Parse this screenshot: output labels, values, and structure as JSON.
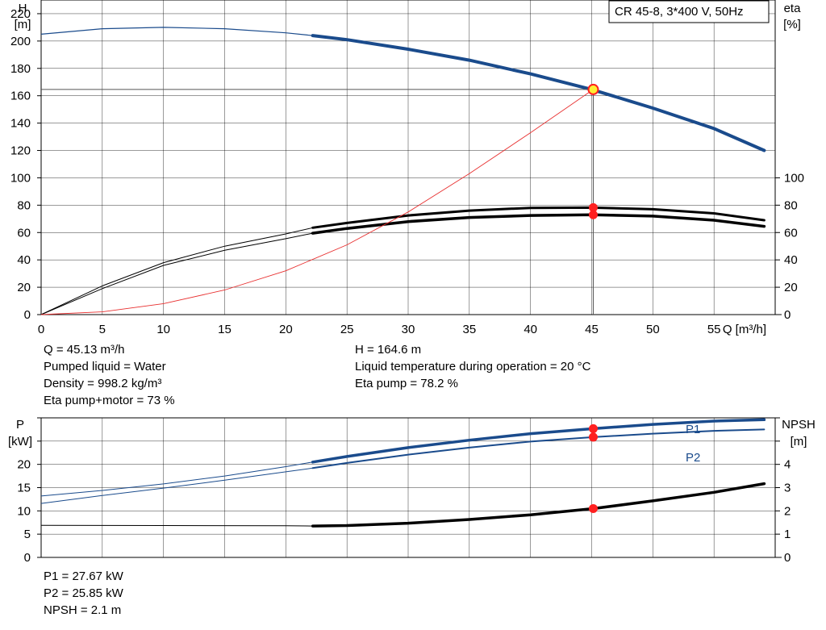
{
  "legend_box": "CR 45-8, 3*400 V, 50Hz",
  "info_top_left": [
    "Q = 45.13 m³/h",
    "Pumped liquid = Water",
    "Density = 998.2 kg/m³",
    "Eta pump+motor = 73 %"
  ],
  "info_top_right": [
    "H = 164.6 m",
    "Liquid temperature during operation = 20 °C",
    "Eta pump = 78.2 %"
  ],
  "info_bottom": [
    "P1 = 27.67 kW",
    "P2 = 25.85 kW",
    "NPSH = 2.1 m"
  ],
  "colors": {
    "head": "#1a4b8c",
    "power": "#1a4b8c",
    "eta": "#000000",
    "system": "#e83030",
    "duty_point": "#ff2020",
    "duty_fill": "#ffee33",
    "grid": "#000000"
  },
  "chart_data": [
    {
      "type": "line",
      "xlabel": "Q [m³/h]",
      "ylabel": "H\n[m]",
      "y2label": "eta\n[%]",
      "xlim": [
        0,
        60
      ],
      "ylim": [
        0,
        230
      ],
      "y2lim": [
        0,
        230
      ],
      "x_ticks": [
        0,
        5,
        10,
        15,
        20,
        25,
        30,
        35,
        40,
        45,
        50,
        55
      ],
      "y_ticks": [
        0,
        20,
        40,
        60,
        80,
        100,
        120,
        140,
        160,
        180,
        200,
        220
      ],
      "y2_ticks": [
        0,
        20,
        40,
        60,
        80,
        100
      ],
      "grid": true,
      "series": [
        {
          "role": "head",
          "axis": "left",
          "x": [
            0,
            5,
            10,
            15,
            20,
            22.2,
            25,
            30,
            35,
            40,
            45,
            50,
            55,
            59.1
          ],
          "y": [
            205,
            209,
            210,
            209,
            206,
            204,
            201,
            194,
            186,
            176,
            164.6,
            151,
            136,
            120
          ]
        },
        {
          "role": "eta-pump",
          "axis": "right",
          "x": [
            0,
            5,
            10,
            15,
            20,
            22.2,
            25,
            30,
            35,
            40,
            45,
            50,
            55,
            59.1
          ],
          "y": [
            0,
            21,
            38,
            50,
            59,
            63.5,
            67,
            72.5,
            76,
            78,
            78.2,
            77,
            74,
            69
          ]
        },
        {
          "role": "eta-pump-motor",
          "axis": "right",
          "x": [
            0,
            5,
            10,
            15,
            20,
            22.2,
            25,
            30,
            35,
            40,
            45,
            50,
            55,
            59.1
          ],
          "y": [
            0,
            19,
            36,
            47,
            55.5,
            59.5,
            63,
            68,
            71,
            72.5,
            73,
            72,
            69,
            64.5
          ]
        },
        {
          "role": "system",
          "axis": "left",
          "x": [
            0,
            5,
            10,
            15,
            20,
            25,
            30,
            35,
            40,
            45.13
          ],
          "y": [
            0,
            2,
            8,
            18,
            32,
            51,
            75,
            103,
            133,
            164.6
          ]
        }
      ],
      "duty_point": {
        "x": 45.13,
        "H": 164.6,
        "eta_pump": 78.2,
        "eta_pump_motor": 73
      }
    },
    {
      "type": "line",
      "ylabel": "P\n[kW]",
      "y2label": "NPSH\n[m]",
      "xlim": [
        0,
        60
      ],
      "ylim": [
        0,
        30
      ],
      "y2lim": [
        0,
        6
      ],
      "y_ticks": [
        0,
        5,
        10,
        15,
        20
      ],
      "y2_ticks": [
        0,
        1,
        2,
        3,
        4
      ],
      "grid": true,
      "series": [
        {
          "name": "P1",
          "role": "p1",
          "axis": "left",
          "x": [
            0,
            5,
            10,
            15,
            20,
            22.2,
            25,
            30,
            35,
            40,
            45.13,
            50,
            55,
            59.1
          ],
          "y": [
            13.2,
            14.4,
            15.8,
            17.5,
            19.5,
            20.5,
            21.7,
            23.6,
            25.2,
            26.6,
            27.67,
            28.6,
            29.3,
            29.6
          ]
        },
        {
          "name": "P2",
          "role": "p2",
          "axis": "left",
          "x": [
            0,
            5,
            10,
            15,
            20,
            22.2,
            25,
            30,
            35,
            40,
            45.13,
            50,
            55,
            59.1
          ],
          "y": [
            11.6,
            13.3,
            14.9,
            16.6,
            18.4,
            19.2,
            20.3,
            22.1,
            23.6,
            24.9,
            25.85,
            26.6,
            27.2,
            27.5
          ]
        },
        {
          "role": "npsh",
          "axis": "right",
          "x": [
            0,
            10,
            20,
            22.2,
            25,
            30,
            35,
            40,
            45.13,
            50,
            55,
            59.1
          ],
          "y": [
            1.38,
            1.37,
            1.36,
            1.35,
            1.37,
            1.47,
            1.63,
            1.83,
            2.1,
            2.43,
            2.8,
            3.17
          ]
        }
      ],
      "duty_point": {
        "x": 45.13,
        "P1": 27.67,
        "P2": 25.85,
        "NPSH": 2.1
      }
    }
  ]
}
